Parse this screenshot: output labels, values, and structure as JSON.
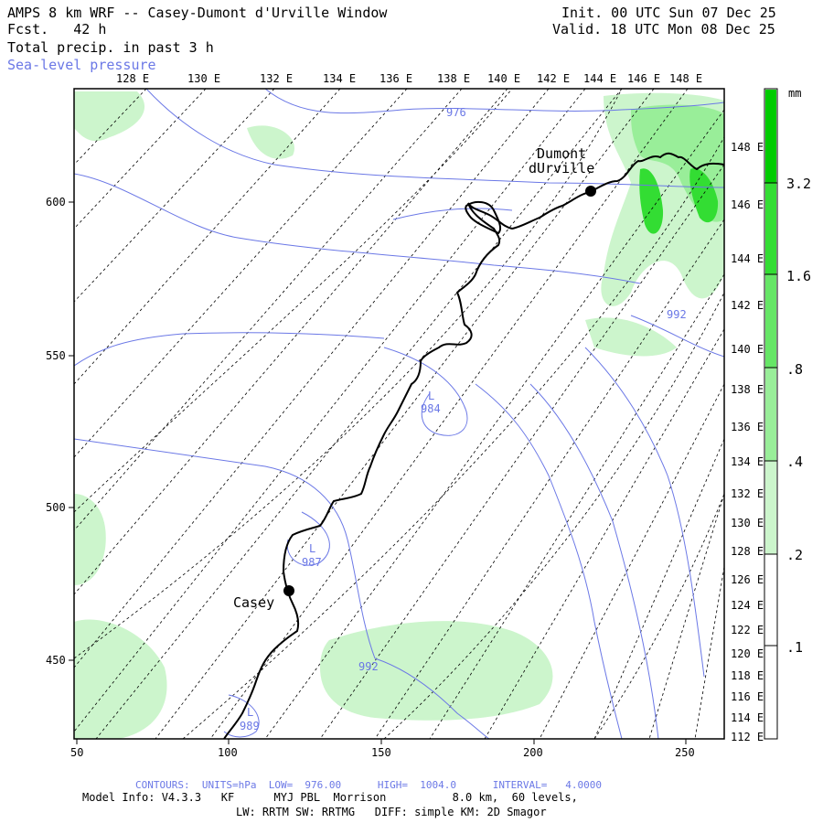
{
  "header": {
    "title": "AMPS 8 km WRF -- Casey-Dumont d'Urville Window",
    "forecast": "Fcst.   42 h",
    "field": "Total precip. in past 3 h",
    "overlay": "Sea-level pressure",
    "init": "Init. 00 UTC Sun 07 Dec 25",
    "valid": "Valid. 18 UTC Mon 08 Dec 25"
  },
  "axes": {
    "top_lon_labels": [
      "128 E",
      "130 E",
      "132 E",
      "134 E",
      "136 E",
      "138 E",
      "140 E",
      "142 E",
      "144 E",
      "146 E",
      "148 E"
    ],
    "right_lon_labels": [
      "148 E",
      "146 E",
      "144 E",
      "142 E",
      "140 E",
      "138 E",
      "136 E",
      "134 E",
      "132 E",
      "130 E",
      "128 E",
      "126 E",
      "124 E",
      "122 E",
      "120 E",
      "118 E",
      "116 E",
      "114 E",
      "112 E"
    ],
    "left_ticks": [
      "600",
      "550",
      "500",
      "450"
    ],
    "bottom_ticks": [
      "50",
      "100",
      "150",
      "200",
      "250"
    ]
  },
  "stations": [
    {
      "name": "Dumont\ndUrville"
    },
    {
      "name": "Casey"
    }
  ],
  "contour_labels": [
    "976",
    "992",
    "L",
    "984",
    "L",
    "987",
    "992",
    "L",
    "989"
  ],
  "colorbar": {
    "unit": "mm",
    "labels": [
      "3.2",
      "1.6",
      ".8",
      ".4",
      ".2",
      ".1"
    ],
    "colors": [
      "#00cc00",
      "#33dd33",
      "#66e666",
      "#99ee99",
      "#ccf5cc",
      "#ffffff"
    ]
  },
  "footer": {
    "contours": "CONTOURS:  UNITS=hPa  LOW=  976.00      HIGH=  1004.0      INTERVAL=   4.0000",
    "model_info": "Model Info: V4.3.3   KF      MYJ PBL  Morrison          8.0 km,  60 levels,",
    "physics": "LW: RRTM SW: RRTMG   DIFF: simple KM: 2D Smagor"
  },
  "colors": {
    "contour": "#6b78e6",
    "coast": "#000000"
  }
}
